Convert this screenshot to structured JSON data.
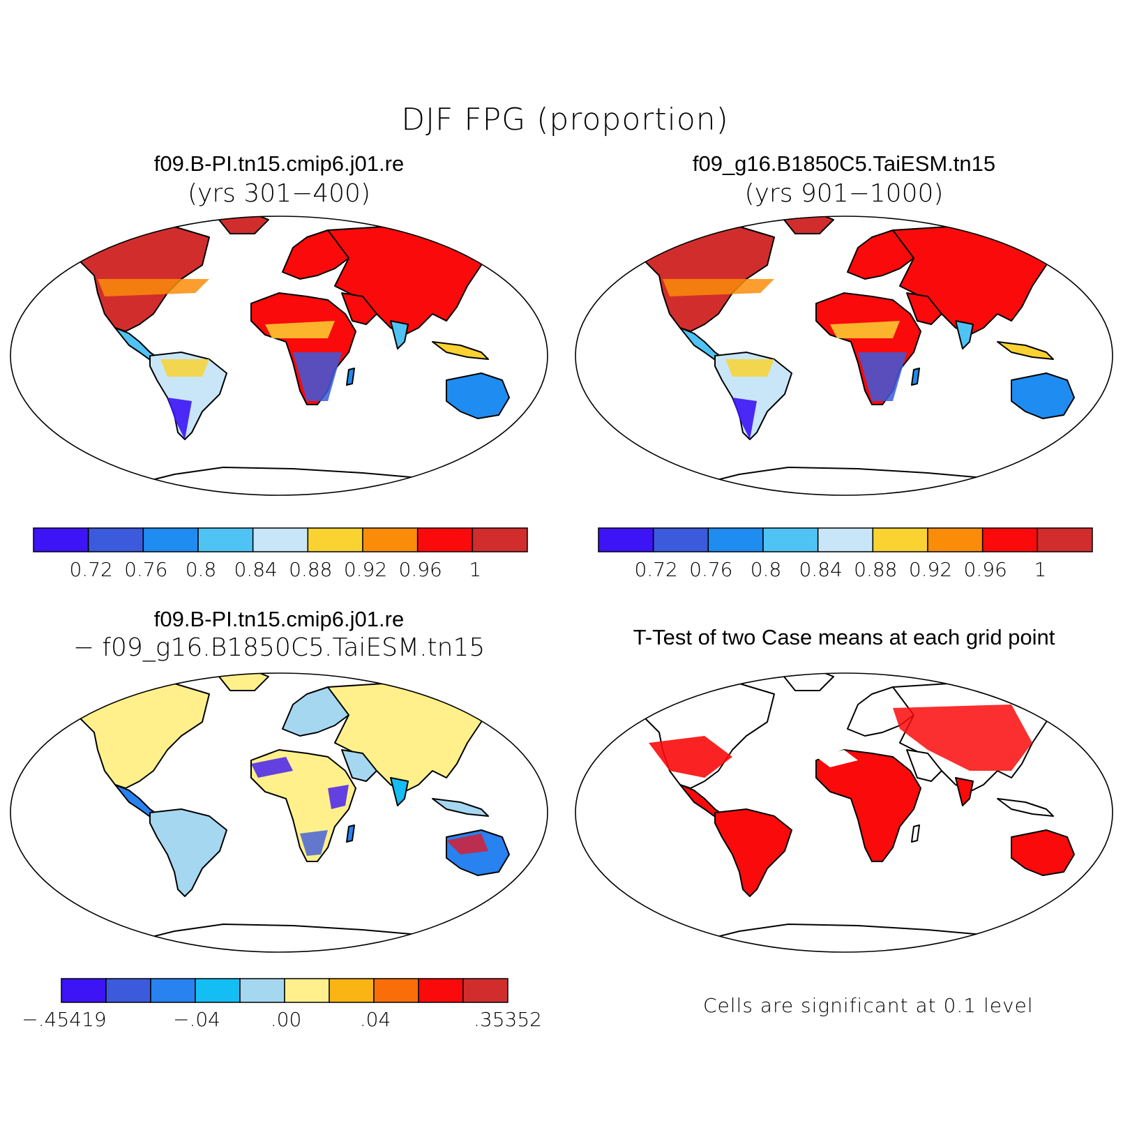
{
  "figure": {
    "title": "DJF FPG (proportion)"
  },
  "panels": [
    {
      "id": "case1",
      "title": "f09.B-PI.tn15.cmip6.j01.re",
      "subtitle": "(yrs 301−400)",
      "colorbar": {
        "colors": [
          "#3c14f5",
          "#3c5adc",
          "#1e8cf0",
          "#50c3f5",
          "#c8e6f8",
          "#fad232",
          "#fa8c0a",
          "#fa0a0a",
          "#d22d2d"
        ],
        "labels": [
          "0.72",
          "0.76",
          "0.8",
          "0.84",
          "0.88",
          "0.92",
          "0.96",
          "1"
        ]
      }
    },
    {
      "id": "case2",
      "title": "f09_g16.B1850C5.TaiESM.tn15",
      "subtitle": "(yrs 901−1000)",
      "colorbar": {
        "colors": [
          "#3c14f5",
          "#3c5adc",
          "#1e8cf0",
          "#50c3f5",
          "#c8e6f8",
          "#fad232",
          "#fa8c0a",
          "#fa0a0a",
          "#d22d2d"
        ],
        "labels": [
          "0.72",
          "0.76",
          "0.8",
          "0.84",
          "0.88",
          "0.92",
          "0.96",
          "1"
        ]
      }
    },
    {
      "id": "difference",
      "title": "f09.B-PI.tn15.cmip6.j01.re",
      "subtitle": "− f09_g16.B1850C5.TaiESM.tn15",
      "colorbar": {
        "colors": [
          "#3c14f5",
          "#3c5adc",
          "#2882f0",
          "#14bef5",
          "#a5d7f0",
          "#fff08c",
          "#fab414",
          "#fa6e0a",
          "#fa0a0a",
          "#d22d2d"
        ],
        "labels": [
          "−.45419",
          "−.04",
          ".00",
          ".04",
          ".35352"
        ]
      }
    },
    {
      "id": "ttest",
      "title": "T-Test of two Case means at each grid point",
      "note": "Cells are significant at 0.1 level",
      "colors": {
        "significant": "#fa0a0a"
      }
    }
  ]
}
